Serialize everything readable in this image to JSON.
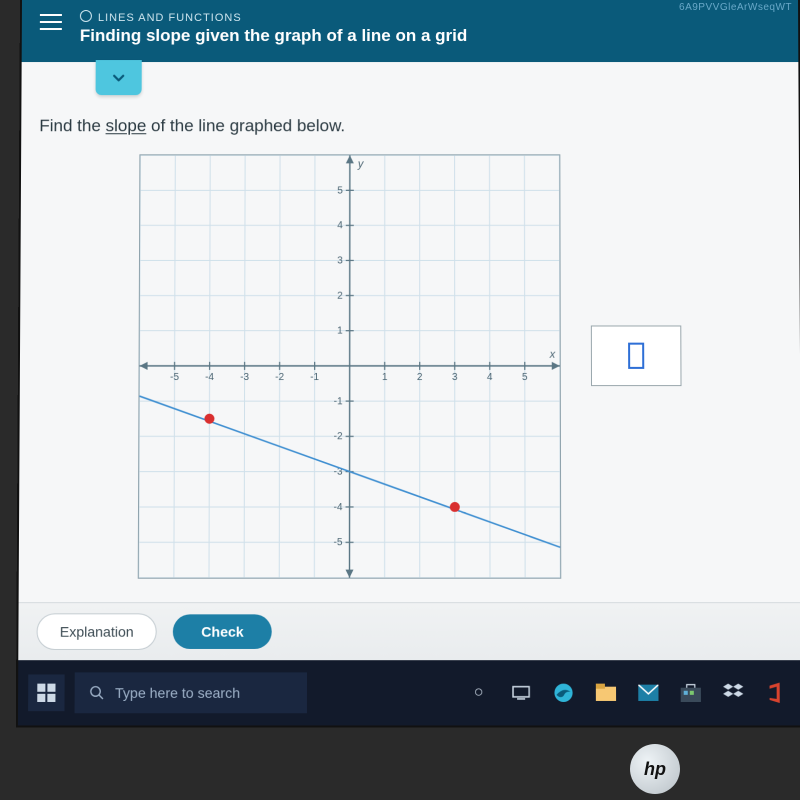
{
  "header": {
    "category": "LINES AND FUNCTIONS",
    "title": "Finding slope given the graph of a line on a grid",
    "watermark": "6A9PVVGleArWseqWT"
  },
  "prompt": {
    "prefix": "Find the ",
    "underlined": "slope",
    "suffix": " of the line graphed below."
  },
  "graph": {
    "type": "line",
    "xlim": [
      -6,
      6
    ],
    "ylim": [
      -6,
      6
    ],
    "xtick_step": 1,
    "ytick_step": 1,
    "x_tick_labels": [
      -5,
      -4,
      -3,
      -2,
      -1,
      1,
      2,
      3,
      4,
      5
    ],
    "y_tick_labels": [
      -5,
      -4,
      -3,
      -2,
      -1,
      1,
      2,
      3,
      4,
      5
    ],
    "x_axis_label": "x",
    "y_axis_label": "y",
    "grid_color": "#cfe0ea",
    "axis_color": "#5a7684",
    "background_color": "#f6f7f8",
    "tick_label_color": "#4a6472",
    "tick_label_fontsize": 10,
    "line": {
      "points": [
        [
          -6,
          -0.857
        ],
        [
          6,
          -5.14
        ]
      ],
      "color": "#3f8fd1",
      "width": 1.6
    },
    "markers": [
      {
        "x": -4,
        "y": -1.5,
        "color": "#d92f2f",
        "radius": 5
      },
      {
        "x": 3,
        "y": -4,
        "color": "#d92f2f",
        "radius": 5
      }
    ]
  },
  "buttons": {
    "explanation": "Explanation",
    "check": "Check"
  },
  "taskbar": {
    "search_placeholder": "Type here to search"
  },
  "brand": "hp"
}
